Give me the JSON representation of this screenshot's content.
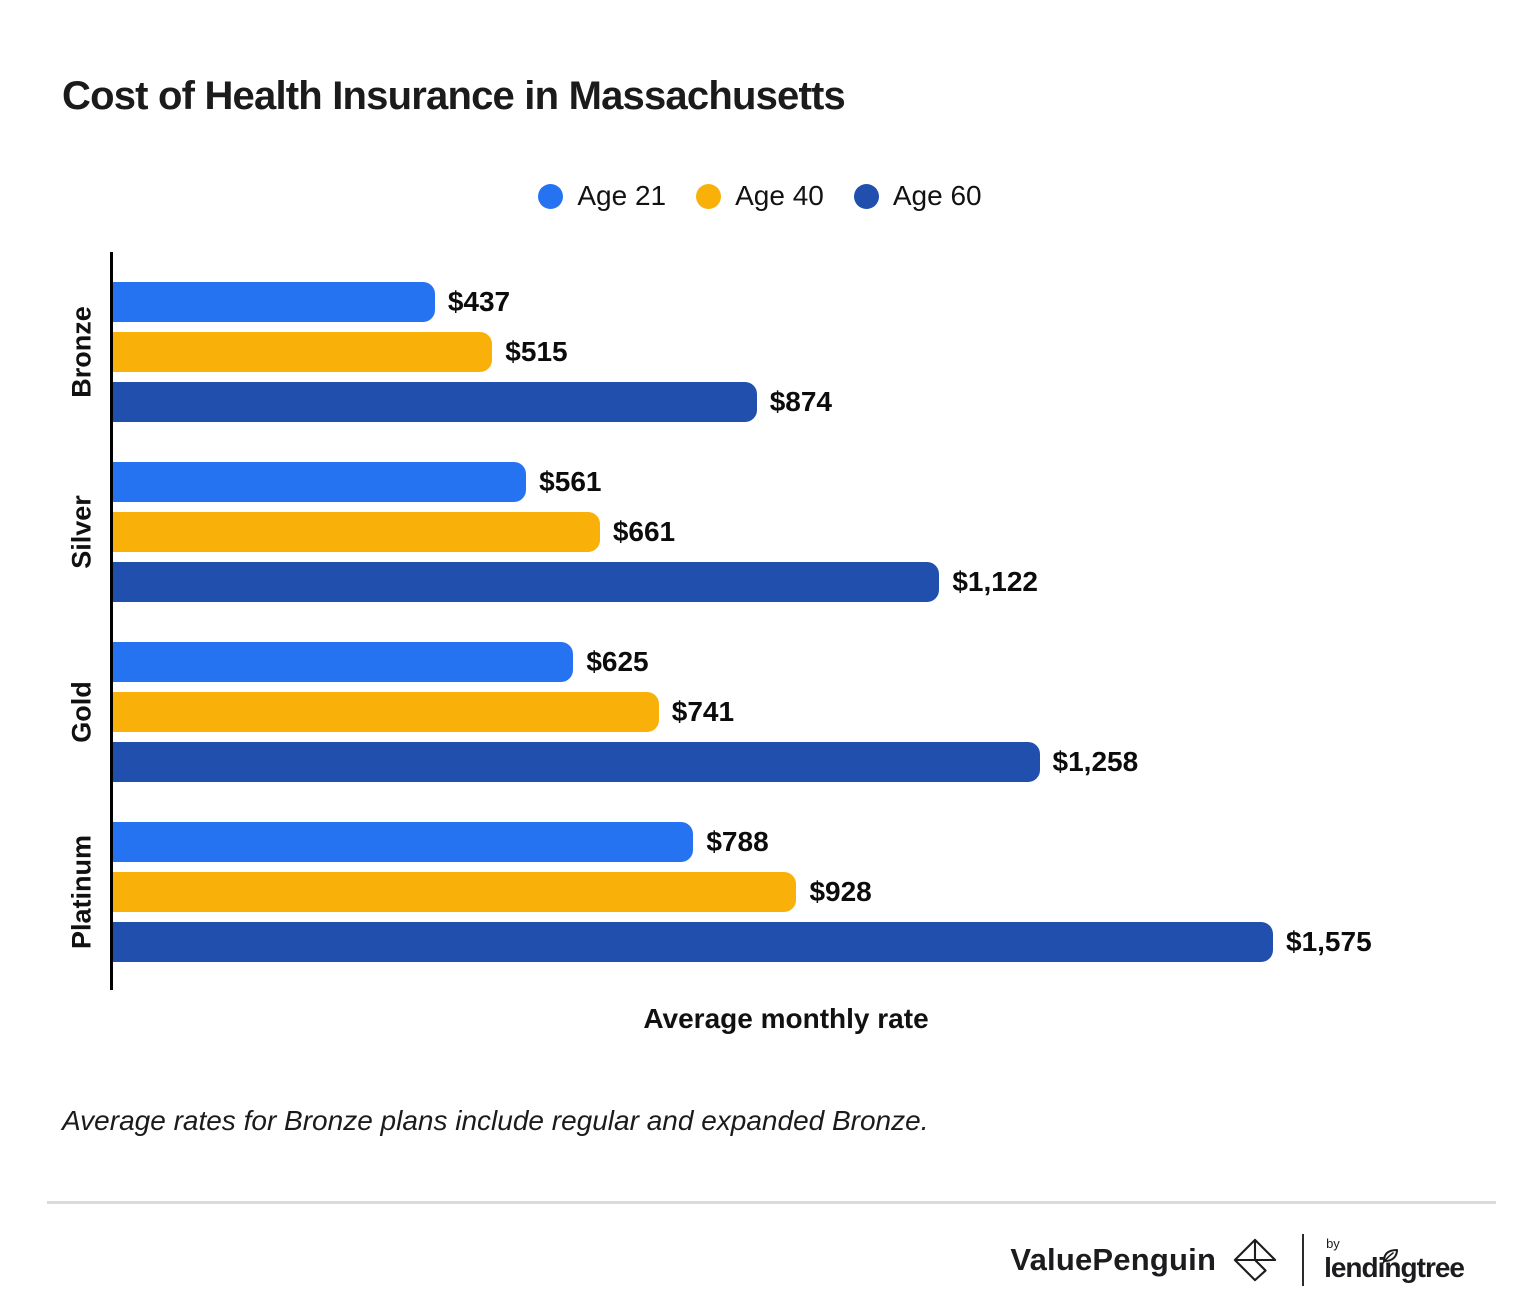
{
  "title": "Cost of Health Insurance in Massachusetts",
  "chart_data": {
    "type": "bar",
    "orientation": "horizontal",
    "title": "Cost of Health Insurance in Massachusetts",
    "xlabel": "Average monthly rate",
    "ylabel": "",
    "x_max": 1575,
    "grid": false,
    "legend_position": "top-center",
    "categories": [
      "Bronze",
      "Silver",
      "Gold",
      "Platinum"
    ],
    "series": [
      {
        "name": "Age 21",
        "color": "#2673F2",
        "values": [
          437,
          561,
          625,
          788
        ]
      },
      {
        "name": "Age 40",
        "color": "#F9B10A",
        "values": [
          515,
          661,
          741,
          928
        ]
      },
      {
        "name": "Age 60",
        "color": "#204FAD",
        "values": [
          874,
          1122,
          1258,
          1575
        ]
      }
    ],
    "groups": [
      {
        "category": "Bronze",
        "bars": [
          {
            "series": "Age 21",
            "value": 437,
            "label": "$437"
          },
          {
            "series": "Age 40",
            "value": 515,
            "label": "$515"
          },
          {
            "series": "Age 60",
            "value": 874,
            "label": "$874"
          }
        ]
      },
      {
        "category": "Silver",
        "bars": [
          {
            "series": "Age 21",
            "value": 561,
            "label": "$561"
          },
          {
            "series": "Age 40",
            "value": 661,
            "label": "$661"
          },
          {
            "series": "Age 60",
            "value": 1122,
            "label": "$1,122"
          }
        ]
      },
      {
        "category": "Gold",
        "bars": [
          {
            "series": "Age 21",
            "value": 625,
            "label": "$625"
          },
          {
            "series": "Age 40",
            "value": 741,
            "label": "$741"
          },
          {
            "series": "Age 60",
            "value": 1258,
            "label": "$1,258"
          }
        ]
      },
      {
        "category": "Platinum",
        "bars": [
          {
            "series": "Age 21",
            "value": 788,
            "label": "$788"
          },
          {
            "series": "Age 40",
            "value": 928,
            "label": "$928"
          },
          {
            "series": "Age 60",
            "value": 1575,
            "label": "$1,575"
          }
        ]
      }
    ]
  },
  "footnote": "Average rates for Bronze plans include regular and expanded Bronze.",
  "footer": {
    "brand": "ValuePenguin",
    "by_label": "by",
    "partner": "lendingtree"
  },
  "colors": {
    "axis": "#000000",
    "text": "#1A1A1A",
    "divider": "#DBDBDB"
  }
}
